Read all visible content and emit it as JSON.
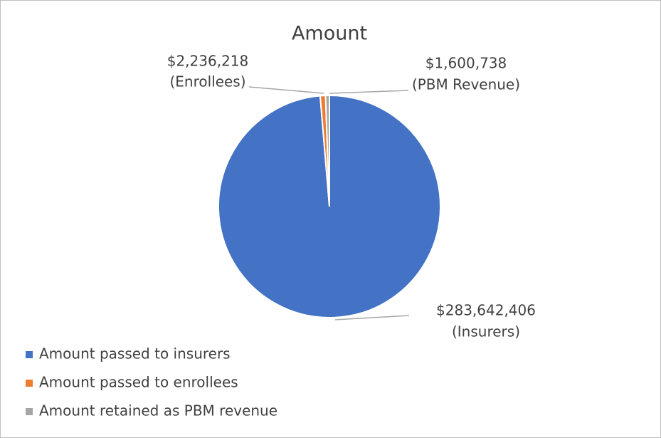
{
  "chart_data": {
    "type": "pie",
    "title": "Amount",
    "categories": [
      "Amount passed to insurers",
      "Amount passed to enrollees",
      "Amount retained as PBM revenue"
    ],
    "values": [
      283642406,
      2236218,
      1600738
    ],
    "value_labels": [
      "$283,642,406",
      "$2,236,218",
      "$1,600,738"
    ],
    "label_names": [
      "(Insurers)",
      "(Enrollees)",
      "(PBM Revenue)"
    ],
    "colors": [
      "#4472c4",
      "#ed7d31",
      "#a5a5a5"
    ],
    "legend": "bottom-left"
  }
}
